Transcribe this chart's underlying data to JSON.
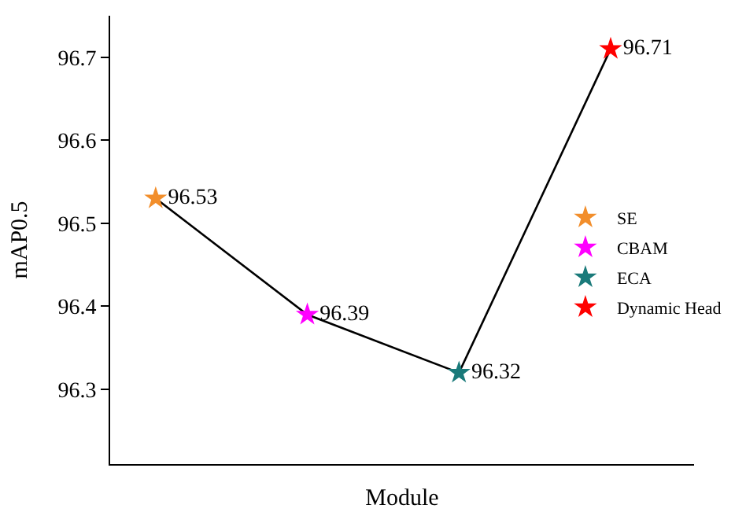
{
  "chart_data": {
    "type": "line",
    "xlabel": "Module",
    "ylabel": "mAP0.5",
    "categories": [
      null,
      null,
      null,
      null
    ],
    "ylim": [
      96.21,
      96.75
    ],
    "yticks": [
      96.3,
      96.4,
      96.5,
      96.6,
      96.7
    ],
    "grid": false,
    "legend": "right",
    "tick_labels": "y",
    "series": [
      {
        "color": "#000000",
        "values": [
          96.53,
          96.39,
          96.32,
          96.71
        ],
        "marker": "none",
        "line_style": "solid"
      },
      {
        "type": "scatter",
        "name": "SE",
        "color": "#f28e2b",
        "values": [
          96.53,
          null,
          null,
          null
        ],
        "value_labels": [
          "96.53",
          null,
          null,
          null
        ],
        "marker": "star"
      },
      {
        "type": "scatter",
        "name": "CBAM",
        "color": "#ff00ff",
        "values": [
          null,
          96.39,
          null,
          null
        ],
        "value_labels": [
          null,
          "96.39",
          null,
          null
        ],
        "marker": "star"
      },
      {
        "type": "scatter",
        "name": "ECA",
        "color": "#1a7a7a",
        "values": [
          null,
          null,
          96.32,
          null
        ],
        "value_labels": [
          null,
          null,
          "96.32",
          null
        ],
        "marker": "star"
      },
      {
        "type": "scatter",
        "name": "Dynamic Head",
        "color": "#ff0000",
        "values": [
          null,
          null,
          null,
          96.71
        ],
        "value_labels": [
          null,
          null,
          null,
          "96.71"
        ],
        "marker": "star"
      }
    ]
  }
}
